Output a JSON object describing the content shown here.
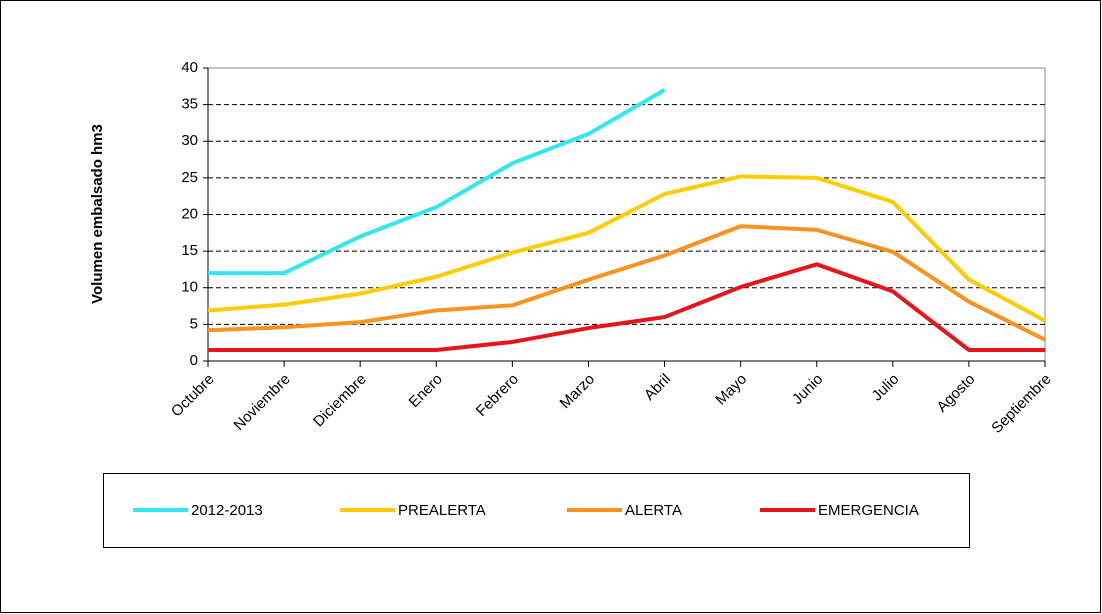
{
  "chart_data": {
    "type": "line",
    "y_label": "Volumen embalsado hm3",
    "categories": [
      "Octubre",
      "Noviembre",
      "Diciembre",
      "Enero",
      "Febrero",
      "Marzo",
      "Abril",
      "Mayo",
      "Junio",
      "Julio",
      "Agosto",
      "Septiembre"
    ],
    "series": [
      {
        "name": "2012-2013",
        "color": "#33e6f0",
        "values": [
          12,
          12,
          17,
          21,
          27,
          31,
          37,
          null,
          null,
          null,
          null,
          null
        ]
      },
      {
        "name": "PREALERTA",
        "color": "#ffcc00",
        "values": [
          6.9,
          7.7,
          9.2,
          11.5,
          14.8,
          17.5,
          22.8,
          25.2,
          25,
          21.7,
          11.1,
          5.5
        ]
      },
      {
        "name": "ALERTA",
        "color": "#f7931e",
        "values": [
          4.2,
          4.6,
          5.3,
          6.9,
          7.6,
          11.1,
          14.4,
          18.4,
          17.9,
          14.9,
          8.1,
          2.9
        ]
      },
      {
        "name": "EMERGENCIA",
        "color": "#e8141c",
        "values": [
          1.5,
          1.5,
          1.5,
          1.5,
          2.6,
          4.5,
          6,
          10.1,
          13.2,
          9.5,
          1.5,
          1.5
        ]
      }
    ],
    "ylim": [
      0,
      40
    ],
    "yticks": [
      0,
      5,
      10,
      15,
      20,
      25,
      30,
      35,
      40
    ],
    "grid": true,
    "legend": "bottom"
  }
}
